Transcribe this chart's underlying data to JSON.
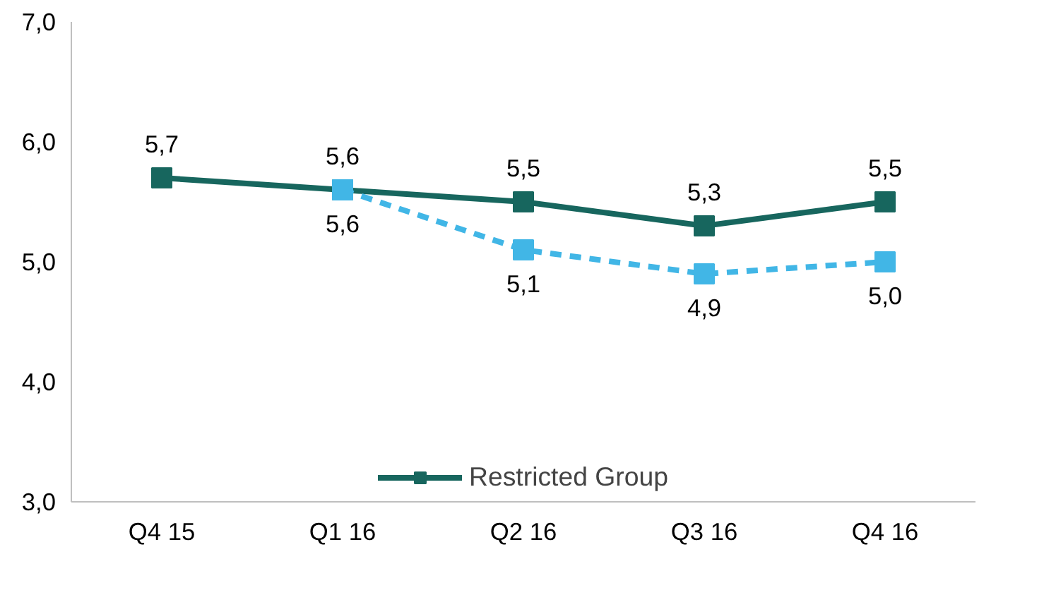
{
  "chart_data": {
    "type": "line",
    "categories": [
      "Q4 15",
      "Q1 16",
      "Q2 16",
      "Q3 16",
      "Q4 16"
    ],
    "series": [
      {
        "name": "Restricted Group",
        "color": "#17665e",
        "line_style": "solid",
        "values": [
          5.7,
          5.6,
          5.5,
          5.3,
          5.5
        ],
        "value_labels": [
          "5,7",
          "5,6",
          "5,5",
          "5,3",
          "5,5"
        ]
      },
      {
        "color": "#41b6e6",
        "line_style": "dashed",
        "values": [
          null,
          5.6,
          5.1,
          4.9,
          5.0
        ],
        "value_labels": [
          null,
          "5,6",
          "5,1",
          "4,9",
          "5,0"
        ]
      }
    ],
    "ylim": [
      3,
      7
    ],
    "yticks": [
      {
        "value": 3,
        "label": "3,0"
      },
      {
        "value": 4,
        "label": "4,0"
      },
      {
        "value": 5,
        "label": "5,0"
      },
      {
        "value": 6,
        "label": "6,0"
      },
      {
        "value": 7,
        "label": "7,0"
      }
    ],
    "grid": false,
    "legend": "bottom",
    "marker": "square"
  }
}
